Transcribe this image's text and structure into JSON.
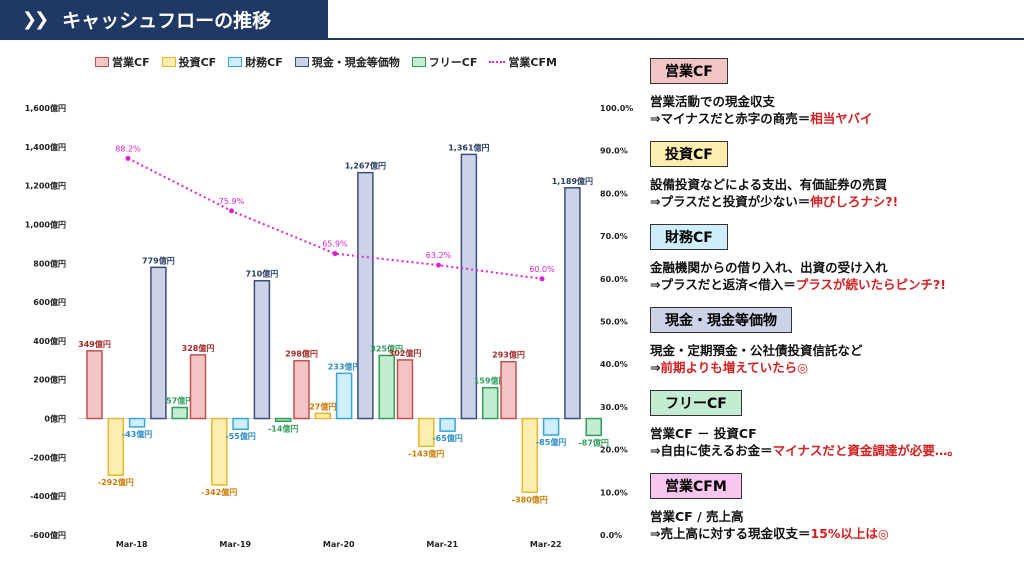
{
  "title": "キャッシュフローの推移",
  "title_icon": "double-chevron-icon",
  "legend": [
    {
      "label": "営業CF",
      "color": "#c0504d",
      "fill": "#f2c4c4",
      "kind": "bar"
    },
    {
      "label": "投資CF",
      "color": "#e6b830",
      "fill": "#fdeeb0",
      "kind": "bar"
    },
    {
      "label": "財務CF",
      "color": "#3ba6d6",
      "fill": "#cdeefa",
      "kind": "bar"
    },
    {
      "label": "現金・現金等価物",
      "color": "#3a4f7a",
      "fill": "#ccd3e6",
      "kind": "bar"
    },
    {
      "label": "フリーCF",
      "color": "#2f9e5a",
      "fill": "#c4ecd2",
      "kind": "bar"
    },
    {
      "label": "営業CFM",
      "color": "#e020d0",
      "kind": "line"
    }
  ],
  "chart_data": {
    "type": "bar",
    "categories": [
      "Mar-18",
      "Mar-19",
      "Mar-20",
      "Mar-21",
      "Mar-22"
    ],
    "series": [
      {
        "name": "営業CF",
        "values": [
          349,
          328,
          298,
          302,
          293
        ],
        "labels": [
          "349億円",
          "328億円",
          "298億円",
          "302億円",
          "293億円"
        ]
      },
      {
        "name": "投資CF",
        "values": [
          -292,
          -342,
          27,
          -143,
          -380
        ],
        "labels": [
          "-292億円",
          "-342億円",
          "27億円",
          "-143億円",
          "-380億円"
        ]
      },
      {
        "name": "財務CF",
        "values": [
          -43,
          -55,
          233,
          -65,
          -85
        ],
        "labels": [
          "-43億円",
          "-55億円",
          "233億円",
          "-65億円",
          "-85億円"
        ]
      },
      {
        "name": "現金・現金等価物",
        "values": [
          779,
          710,
          1267,
          1361,
          1189
        ],
        "labels": [
          "779億円",
          "710億円",
          "1,267億円",
          "1,361億円",
          "1,189億円"
        ]
      },
      {
        "name": "フリーCF",
        "values": [
          57,
          -14,
          325,
          159,
          -87
        ],
        "labels": [
          "57億円",
          "-14億円",
          "325億円",
          "159億円",
          "-87億円"
        ]
      }
    ],
    "line_series": {
      "name": "営業CFM",
      "values": [
        88.2,
        75.9,
        65.9,
        63.2,
        60.0
      ],
      "labels": [
        "88.2%",
        "75.9%",
        "65.9%",
        "63.2%",
        "60.0%"
      ]
    },
    "ylim": [
      -600,
      1600
    ],
    "y_ticks": [
      "-600億円",
      "-400億円",
      "-200億円",
      "0億円",
      "200億円",
      "400億円",
      "600億円",
      "800億円",
      "1,000億円",
      "1,200億円",
      "1,400億円",
      "1,600億円"
    ],
    "y2lim": [
      0,
      100
    ],
    "y2_ticks": [
      "0.0%",
      "10.0%",
      "20.0%",
      "30.0%",
      "40.0%",
      "50.0%",
      "60.0%",
      "70.0%",
      "80.0%",
      "90.0%",
      "100.0%"
    ],
    "legend_position": "top",
    "grid": false
  },
  "panels": [
    {
      "tag": "営業CF",
      "tag_bg": "#f2c4c4",
      "line1": "営業活動での現金収支",
      "line2_prefix": "⇒マイナスだと赤字の商売＝",
      "line2_em": "相当ヤバイ"
    },
    {
      "tag": "投資CF",
      "tag_bg": "#fdeeb0",
      "line1": "設備投資などによる支出、有価証券の売買",
      "line2_prefix": "⇒プラスだと投資が少ない＝",
      "line2_em": "伸びしろナシ?!"
    },
    {
      "tag": "財務CF",
      "tag_bg": "#cdeefa",
      "line1": "金融機関からの借り入れ、出資の受け入れ",
      "line2_prefix": "⇒プラスだと返済<借入＝",
      "line2_em": "プラスが続いたらピンチ?!"
    },
    {
      "tag": "現金・現金等価物",
      "tag_bg": "#ccd3e6",
      "line1": "現金・定期預金・公社債投資信託など",
      "line2_prefix": "⇒",
      "line2_em": "前期よりも増えていたら◎"
    },
    {
      "tag": "フリーCF",
      "tag_bg": "#c4ecd2",
      "line1": "営業CF － 投資CF",
      "line2_prefix": "⇒自由に使えるお金＝",
      "line2_em": "マイナスだと資金調達が必要…。"
    },
    {
      "tag": "営業CFM",
      "tag_bg": "#f6c6ee",
      "line1": "営業CF / 売上高",
      "line2_prefix": "⇒売上高に対する現金収支＝",
      "line2_em": "15%以上は◎"
    }
  ]
}
